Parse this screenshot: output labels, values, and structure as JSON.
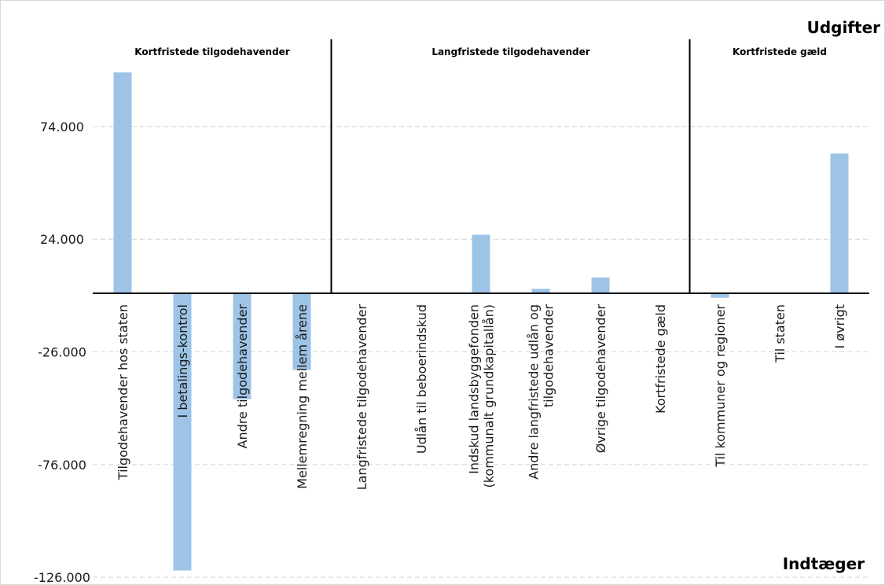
{
  "chart_data": {
    "type": "bar",
    "colors": {
      "bar": "#9dc3e6",
      "grid": "#d4d4d4",
      "axis": "#000000",
      "divider": "#000000",
      "frame": "#d9d9d9"
    },
    "top_right_label": "Udgifter",
    "bottom_right_label": "Indtæger",
    "ylim": [
      -126000,
      126000
    ],
    "ytick_values": [
      74000,
      24000,
      -26000,
      -76000,
      -126000
    ],
    "ytick_labels": [
      "74.000",
      "24.000",
      "-26.000",
      "-76.000",
      "-126.000"
    ],
    "grid": true,
    "categories": [
      [
        "Tilgodehavender hos staten"
      ],
      [
        "I betalings-kontrol"
      ],
      [
        "Andre tilgodehavender"
      ],
      [
        "Mellemregning mellem årene"
      ],
      [
        "Langfristede tilgodehavender"
      ],
      [
        "Udlån til beboerindskud"
      ],
      [
        "Indskud landsbyggefonden",
        "(kommunalt grundkapitallån)"
      ],
      [
        "Andre langfristede udlån og",
        "tilgodehavender"
      ],
      [
        "Øvrige tilgodehavender"
      ],
      [
        "Kortfristede gæld"
      ],
      [
        "Til kommuner og regioner"
      ],
      [
        "Til staten"
      ],
      [
        "I øvrigt"
      ]
    ],
    "values": [
      98000,
      -123000,
      -47000,
      -34000,
      0,
      0,
      26000,
      2000,
      7000,
      0,
      -2000,
      0,
      62000
    ],
    "groups": [
      {
        "label": "Kortfristede tilgodehavender",
        "start": 0,
        "end": 3
      },
      {
        "label": "Langfristede tilgodehavender",
        "start": 4,
        "end": 9
      },
      {
        "label": "Kortfristede gæld",
        "start": 10,
        "end": 12
      }
    ]
  }
}
